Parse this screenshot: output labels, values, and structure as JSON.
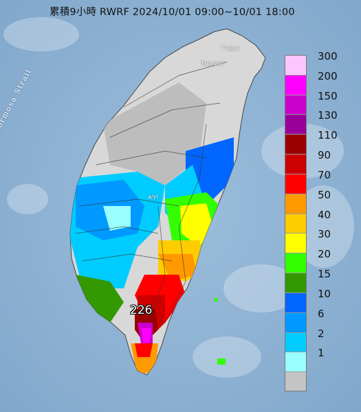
{
  "title": "累積9小時 RWRF 2024/10/01 09:00~10/01 18:00",
  "map": {
    "strait_label": "Formosa Strait",
    "places": [
      {
        "name": "Taipei",
        "label": "T'aipei"
      },
      {
        "name": "Taoyuan",
        "label": "Taoyuan"
      },
      {
        "name": "Chiayi",
        "label": "a/yi"
      }
    ],
    "max_value_label": "226"
  },
  "legend": {
    "unit_levels": [
      {
        "label": "300",
        "color": "#fcc6fc"
      },
      {
        "label": "200",
        "color": "#ff00ff"
      },
      {
        "label": "150",
        "color": "#cc00cc"
      },
      {
        "label": "130",
        "color": "#990099"
      },
      {
        "label": "110",
        "color": "#990000"
      },
      {
        "label": "90",
        "color": "#cc0000"
      },
      {
        "label": "70",
        "color": "#ff0000"
      },
      {
        "label": "50",
        "color": "#ff9900"
      },
      {
        "label": "40",
        "color": "#ffcc00"
      },
      {
        "label": "30",
        "color": "#ffff00"
      },
      {
        "label": "20",
        "color": "#33ff00"
      },
      {
        "label": "15",
        "color": "#339900"
      },
      {
        "label": "10",
        "color": "#0066ff"
      },
      {
        "label": "6",
        "color": "#0099ff"
      },
      {
        "label": "2",
        "color": "#00ccff"
      },
      {
        "label": "1",
        "color": "#99ffff"
      },
      {
        "label": "",
        "color": "#c4c4c4"
      }
    ]
  },
  "colors": {
    "ocean": "#8fb3d4",
    "land_gray": "#bdbdbd",
    "land_light": "#d8d8d8"
  }
}
